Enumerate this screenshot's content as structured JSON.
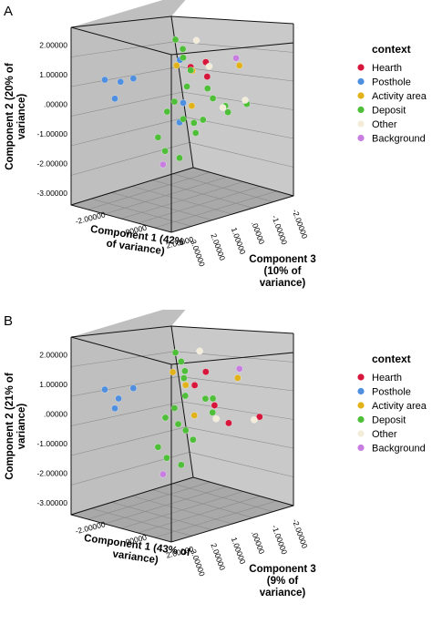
{
  "chart_data": [
    {
      "type": "scatter",
      "subtype": "3d-scatter",
      "panel_label": "A",
      "xlabel": [
        "Component 1 (42%",
        "of variance)"
      ],
      "ylabel": [
        "Component 2 (20% of",
        "variance)"
      ],
      "zlabel": [
        "Component 3",
        "(10% of",
        "variance)"
      ],
      "y_ticks": [
        "2.00000",
        "1.00000",
        ".00000",
        "-1.00000",
        "-2.00000",
        "-3.00000"
      ],
      "x_ticks": [
        "-2.00000",
        ".00000",
        "2.00000"
      ],
      "z_ticks": [
        "3.00000",
        "2.00000",
        "1.00000",
        ".00000",
        "-1.00000",
        "-2.00000"
      ],
      "legend": {
        "title": "context",
        "placement": "right",
        "items": [
          {
            "label": "Hearth",
            "color": "#d6163a"
          },
          {
            "label": "Posthole",
            "color": "#4f8fe0"
          },
          {
            "label": "Activity area",
            "color": "#e2b21a"
          },
          {
            "label": "Deposit",
            "color": "#4fbf3a"
          },
          {
            "label": "Other",
            "color": "#f2ecd8"
          },
          {
            "label": "Background",
            "color": "#c77ee0"
          }
        ]
      },
      "series": [
        {
          "name": "Hearth",
          "x": [
            0.8,
            1.0,
            0.5
          ],
          "y": [
            1.3,
            0.9,
            1.2
          ],
          "z": [
            -0.5,
            -0.4,
            0.0
          ]
        },
        {
          "name": "Posthole",
          "x": [
            -2.2,
            -1.5,
            -1.6,
            -1.1,
            0.1,
            0.3,
            0.2
          ],
          "y": [
            0.8,
            0.8,
            0.3,
            0.9,
            1.4,
            0.1,
            -0.5
          ],
          "z": [
            2.0,
            1.8,
            2.0,
            1.5,
            0.2,
            0.2,
            0.3
          ]
        },
        {
          "name": "Activity area",
          "x": [
            -0.1,
            0.6,
            0.2,
            2.2
          ],
          "y": [
            1.2,
            1.1,
            -0.1,
            1.3
          ],
          "z": [
            0.2,
            0.0,
            -0.3,
            -1.0
          ]
        },
        {
          "name": "Deposit",
          "x": [
            0.2,
            0.4,
            0.3,
            0.5,
            0.4,
            -0.1,
            -0.3,
            0.3,
            0.7,
            1.0,
            0.8,
            -0.6,
            -0.3,
            0.2,
            0.9,
            1.1,
            1.6,
            2.0,
            2.4
          ],
          "y": [
            2.1,
            1.8,
            1.5,
            1.1,
            0.6,
            0.1,
            -0.2,
            -0.4,
            -0.5,
            -0.4,
            -0.8,
            -1.0,
            -1.4,
            -1.6,
            0.5,
            0.2,
            0.0,
            -0.1,
            0.1
          ],
          "z": [
            0.5,
            0.3,
            0.2,
            0.0,
            0.1,
            0.3,
            0.5,
            0.2,
            0.0,
            -0.2,
            0.0,
            0.7,
            0.6,
            0.3,
            -0.5,
            -0.6,
            -0.8,
            -0.6,
            -1.2
          ]
        },
        {
          "name": "Other",
          "x": [
            0.6,
            1.0,
            1.7,
            2.3
          ],
          "y": [
            2.0,
            1.2,
            0.0,
            0.2
          ],
          "z": [
            -0.2,
            -0.5,
            -0.6,
            -1.2
          ]
        },
        {
          "name": "Background",
          "x": [
            2.0,
            -0.3
          ],
          "y": [
            1.5,
            -1.8
          ],
          "z": [
            -1.0,
            0.7
          ]
        }
      ]
    },
    {
      "type": "scatter",
      "subtype": "3d-scatter",
      "panel_label": "B",
      "xlabel": [
        "Component 1 (43% of",
        "variance)"
      ],
      "ylabel": [
        "Component 2 (21% of",
        "variance)"
      ],
      "zlabel": [
        "Component 3",
        "(9% of",
        "variance)"
      ],
      "y_ticks": [
        "2.00000",
        "1.00000",
        ".00000",
        "-1.00000",
        "-2.00000",
        "-3.00000"
      ],
      "x_ticks": [
        "-2.00000",
        ".00000",
        "2.00000"
      ],
      "z_ticks": [
        "3.00000",
        "2.00000",
        "1.00000",
        ".00000",
        "-1.00000",
        "-2.00000"
      ],
      "legend": {
        "title": "context",
        "placement": "right",
        "items": [
          {
            "label": "Hearth",
            "color": "#d6163a"
          },
          {
            "label": "Posthole",
            "color": "#4f8fe0"
          },
          {
            "label": "Activity area",
            "color": "#e2b21a"
          },
          {
            "label": "Deposit",
            "color": "#4fbf3a"
          },
          {
            "label": "Other",
            "color": "#f2ecd8"
          },
          {
            "label": "Background",
            "color": "#c77ee0"
          }
        ]
      },
      "series": [
        {
          "name": "Hearth",
          "x": [
            0.8,
            0.5,
            1.2,
            1.8,
            2.8
          ],
          "y": [
            1.3,
            0.9,
            0.3,
            -0.2,
            0.0
          ],
          "z": [
            -0.5,
            -0.2,
            -0.6,
            -0.8,
            -1.5
          ]
        },
        {
          "name": "Posthole",
          "x": [
            -2.2,
            -1.5,
            -1.6,
            -1.1
          ],
          "y": [
            0.8,
            0.6,
            0.3,
            0.9
          ],
          "z": [
            2.0,
            1.9,
            2.0,
            1.5
          ]
        },
        {
          "name": "Activity area",
          "x": [
            -0.2,
            0.2,
            0.6,
            2.1
          ],
          "y": [
            1.3,
            0.9,
            0.0,
            1.2
          ],
          "z": [
            0.3,
            0.0,
            -0.1,
            -1.0
          ]
        },
        {
          "name": "Deposit",
          "x": [
            0.2,
            0.3,
            0.4,
            0.1,
            0.3,
            -0.1,
            -0.4,
            0.0,
            0.2,
            0.4,
            0.9,
            1.2,
            -0.6,
            -0.2,
            0.3,
            1.1
          ],
          "y": [
            2.0,
            1.7,
            1.4,
            1.1,
            0.6,
            0.2,
            -0.1,
            -0.3,
            -0.5,
            -0.8,
            0.5,
            0.1,
            -1.0,
            -1.3,
            -1.5,
            0.5
          ],
          "z": [
            0.5,
            0.3,
            0.2,
            0.0,
            0.1,
            0.3,
            0.5,
            0.2,
            0.0,
            -0.2,
            -0.4,
            -0.5,
            0.7,
            0.6,
            0.3,
            -0.6
          ]
        },
        {
          "name": "Other",
          "x": [
            0.8,
            1.3,
            2.6
          ],
          "y": [
            2.0,
            -0.1,
            -0.1
          ],
          "z": [
            -0.2,
            -0.6,
            -1.4
          ]
        },
        {
          "name": "Background",
          "x": [
            2.2,
            -0.3
          ],
          "y": [
            1.5,
            -1.8
          ],
          "z": [
            -1.0,
            0.7
          ]
        }
      ]
    }
  ]
}
